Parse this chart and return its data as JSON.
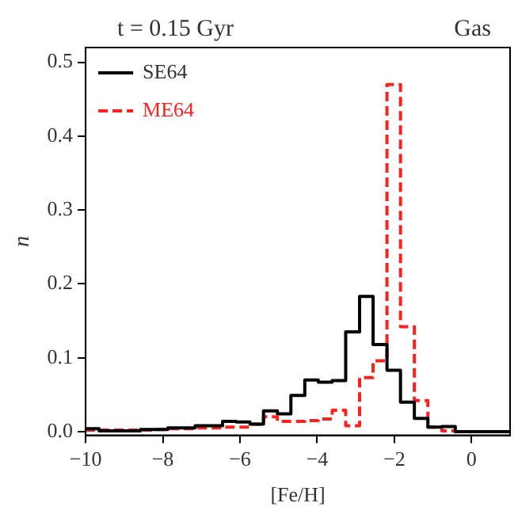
{
  "chart_data": {
    "type": "histogram",
    "title": "t = 0.15 Gyr",
    "annotations": [
      "Gas"
    ],
    "xlabel": "[Fe/H]",
    "ylabel": "n",
    "bins": [
      -10,
      -9.65,
      -9.29,
      -8.94,
      -8.58,
      -8.23,
      -7.87,
      -7.52,
      -7.16,
      -6.81,
      -6.45,
      -6.1,
      -5.74,
      -5.39,
      -5.03,
      -4.68,
      -4.32,
      -3.97,
      -3.61,
      -3.26,
      -2.9,
      -2.55,
      -2.19,
      -1.84,
      -1.48,
      -1.13,
      -0.77,
      -0.42,
      -0.06,
      0.29,
      0.65,
      1
    ],
    "series": [
      {
        "name": "SE64",
        "color": "#000000",
        "line_style": "solid",
        "values": [
          0.004,
          0.001,
          0.001,
          0.001,
          0.003,
          0.003,
          0.005,
          0.005,
          0.008,
          0.008,
          0.014,
          0.013,
          0.01,
          0.028,
          0.024,
          0.049,
          0.07,
          0.067,
          0.069,
          0.135,
          0.183,
          0.118,
          0.083,
          0.04,
          0.018,
          0.006,
          0.007,
          0,
          0,
          0,
          0
        ]
      },
      {
        "name": "ME64",
        "color": "#ff2020",
        "line_style": "dashed",
        "values": [
          0.002,
          0.002,
          0.002,
          0.002,
          0.002,
          0.003,
          0.004,
          0.004,
          0.005,
          0.005,
          0.006,
          0.006,
          0.01,
          0.02,
          0.014,
          0.014,
          0.015,
          0.017,
          0.029,
          0.008,
          0.073,
          0.096,
          0.47,
          0.142,
          0.042,
          0.006,
          0.001,
          0,
          0,
          0,
          0
        ]
      }
    ],
    "xlim": [
      -10,
      1
    ],
    "ylim": [
      -0.005,
      0.52
    ],
    "xticks": [
      {
        "value": -10,
        "label": "−10"
      },
      {
        "value": -8,
        "label": "−8"
      },
      {
        "value": -6,
        "label": "−6"
      },
      {
        "value": -4,
        "label": "−4"
      },
      {
        "value": -2,
        "label": "−2"
      },
      0
    ],
    "yticks": [
      {
        "value": 0,
        "label": "0.0"
      },
      {
        "value": 0.1,
        "label": "0.1"
      },
      {
        "value": 0.2,
        "label": "0.2"
      },
      {
        "value": 0.3,
        "label": "0.3"
      },
      {
        "value": 0.4,
        "label": "0.4"
      },
      {
        "value": 0.5,
        "label": "0.5"
      }
    ],
    "grid": false,
    "legend": "top left"
  }
}
